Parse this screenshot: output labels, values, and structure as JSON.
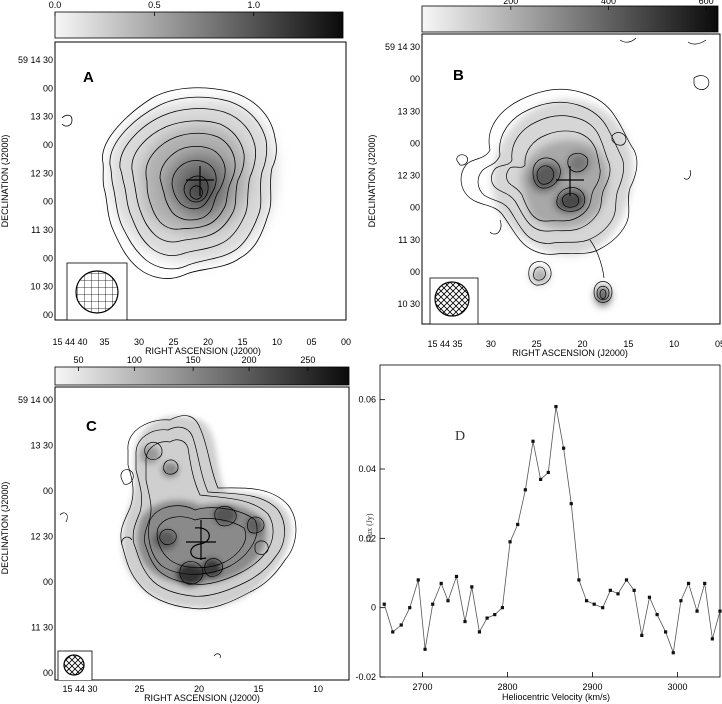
{
  "chart_data": [
    {
      "type": "heatmap",
      "panel_label": "A",
      "colorbar_ticks": [
        "0.0",
        "0.5",
        "1.0"
      ],
      "xlabel": "RIGHT ASCENSION (J2000)",
      "ylabel": "DECLINATION (J2000)",
      "x_ticks": [
        "15 44 40",
        "35",
        "30",
        "25",
        "20",
        "15",
        "10",
        "05",
        "00"
      ],
      "y_ticks": [
        "59 14 30",
        "00",
        "13 30",
        "00",
        "12 30",
        "00",
        "11 30",
        "00",
        "10 30",
        "00"
      ],
      "colors": {
        "low": "#f2f2f2",
        "high": "#141414"
      }
    },
    {
      "type": "heatmap",
      "panel_label": "B",
      "colorbar_ticks": [
        "200",
        "400",
        "600"
      ],
      "xlabel": "RIGHT ASCENSION (J2000)",
      "ylabel": "DECLINATION (J2000)",
      "x_ticks": [
        "15 44 35",
        "30",
        "25",
        "20",
        "15",
        "10",
        "05"
      ],
      "y_ticks": [
        "59 14 30",
        "00",
        "13 30",
        "00",
        "12 30",
        "00",
        "11 30",
        "00",
        "10 30"
      ],
      "colors": {
        "low": "#f2f2f2",
        "high": "#141414"
      }
    },
    {
      "type": "heatmap",
      "panel_label": "C",
      "colorbar_ticks": [
        "50",
        "100",
        "150",
        "200",
        "250"
      ],
      "xlabel": "RIGHT ASCENSION (J2000)",
      "ylabel": "DECLINATION (J2000)",
      "x_ticks": [
        "15 44 30",
        "25",
        "20",
        "15",
        "10"
      ],
      "y_ticks": [
        "59 14 00",
        "13 30",
        "00",
        "12 30",
        "00",
        "11 30",
        "00"
      ],
      "colors": {
        "low": "#f2f2f2",
        "high": "#141414"
      }
    },
    {
      "type": "line",
      "panel_label": "D",
      "xlabel": "Heliocentric Velocity (km/s)",
      "ylabel": "Flux (Jy)",
      "xlim": [
        2650,
        3050
      ],
      "ylim": [
        -0.02,
        0.07
      ],
      "x_ticks": [
        2700,
        2800,
        2900,
        3000
      ],
      "y_ticks": [
        -0.02,
        0,
        0.02,
        0.04,
        0.06
      ],
      "y_tick_labels": [
        "-0.02",
        "0",
        "0.02",
        "0.04",
        "0.06"
      ],
      "series": [
        {
          "x": [
            2655,
            2665,
            2675,
            2685,
            2695,
            2703,
            2712,
            2722,
            2730,
            2740,
            2750,
            2758,
            2767,
            2776,
            2785,
            2794,
            2803,
            2812,
            2821,
            2830,
            2839,
            2848,
            2857,
            2866,
            2875,
            2884,
            2893,
            2902,
            2912,
            2921,
            2930,
            2940,
            2949,
            2958,
            2967,
            2976,
            2986,
            2995,
            3004,
            3013,
            3023,
            3032,
            3041,
            3050
          ],
          "values": [
            0.001,
            -0.007,
            -0.005,
            0.0,
            0.008,
            -0.012,
            0.001,
            0.007,
            0.002,
            0.009,
            -0.004,
            0.006,
            -0.007,
            -0.003,
            -0.002,
            0.0,
            0.019,
            0.024,
            0.034,
            0.048,
            0.037,
            0.039,
            0.058,
            0.046,
            0.03,
            0.008,
            0.002,
            0.001,
            0.0,
            0.005,
            0.004,
            0.008,
            0.005,
            -0.008,
            0.003,
            -0.002,
            -0.007,
            -0.013,
            0.002,
            0.007,
            -0.001,
            0.007,
            -0.009,
            -0.001
          ]
        }
      ],
      "colors": {
        "line": "#555555",
        "marker": "#111111"
      }
    }
  ]
}
